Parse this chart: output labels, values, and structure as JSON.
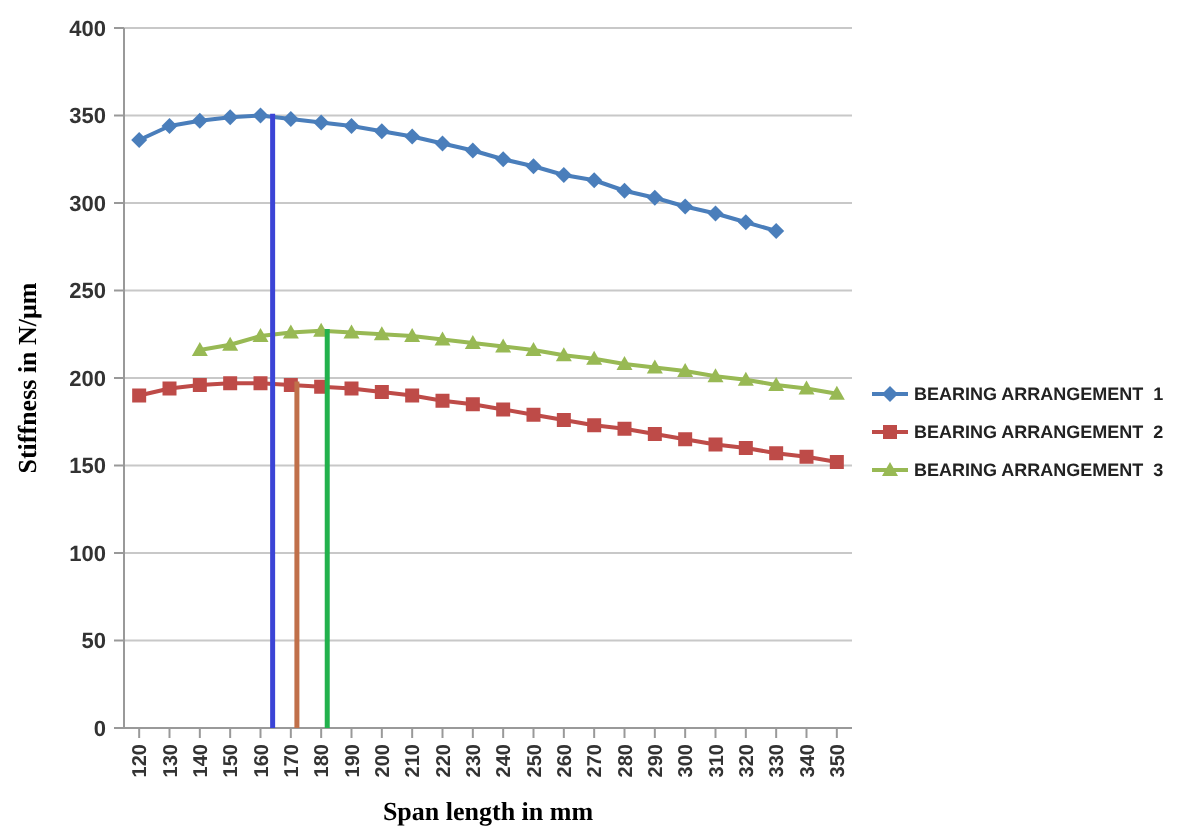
{
  "chart_data": {
    "type": "line",
    "xlabel": "Span length in mm",
    "ylabel": "Stiffness in N/μm",
    "xlim": [
      115,
      355
    ],
    "xticks": [
      120,
      130,
      140,
      150,
      160,
      170,
      180,
      190,
      200,
      210,
      220,
      230,
      240,
      250,
      260,
      270,
      280,
      290,
      300,
      310,
      320,
      330,
      340,
      350
    ],
    "ylim": [
      0,
      400
    ],
    "yticks": [
      0,
      50,
      100,
      150,
      200,
      250,
      300,
      350,
      400
    ],
    "grid": "y",
    "legend": "right",
    "series": [
      {
        "name": "BEARING ARRANGEMENT  1",
        "color": "#4a7ebb",
        "marker": "diamond",
        "x": [
          120,
          130,
          140,
          150,
          160,
          170,
          180,
          190,
          200,
          210,
          220,
          230,
          240,
          250,
          260,
          270,
          280,
          290,
          300,
          310,
          320,
          330
        ],
        "values": [
          336,
          344,
          347,
          349,
          350,
          348,
          346,
          344,
          341,
          338,
          334,
          330,
          325,
          321,
          316,
          313,
          307,
          303,
          298,
          294,
          289,
          284
        ]
      },
      {
        "name": "BEARING ARRANGEMENT  2",
        "color": "#be4b48",
        "marker": "square",
        "x": [
          120,
          130,
          140,
          150,
          160,
          170,
          180,
          190,
          200,
          210,
          220,
          230,
          240,
          250,
          260,
          270,
          280,
          290,
          300,
          310,
          320,
          330,
          340,
          350
        ],
        "values": [
          190,
          194,
          196,
          197,
          197,
          196,
          195,
          194,
          192,
          190,
          187,
          185,
          182,
          179,
          176,
          173,
          171,
          168,
          165,
          162,
          160,
          157,
          155,
          152
        ]
      },
      {
        "name": "BEARING ARRANGEMENT  3",
        "color": "#98b954",
        "marker": "triangle",
        "x": [
          140,
          150,
          160,
          170,
          180,
          190,
          200,
          210,
          220,
          230,
          240,
          250,
          260,
          270,
          280,
          290,
          300,
          310,
          320,
          330,
          340,
          350
        ],
        "values": [
          216,
          219,
          224,
          226,
          227,
          226,
          225,
          224,
          222,
          220,
          218,
          216,
          213,
          211,
          208,
          206,
          204,
          201,
          199,
          196,
          194,
          191
        ]
      },
      {
        "type": "line",
        "color": "#3b44d6",
        "marker": "none",
        "x": [
          164,
          164
        ],
        "values": [
          0,
          351
        ]
      },
      {
        "type": "line",
        "color": "#c0704a",
        "marker": "none",
        "x": [
          172,
          172
        ],
        "values": [
          0,
          198
        ]
      },
      {
        "type": "line",
        "color": "#22b14c",
        "marker": "none",
        "x": [
          182,
          182
        ],
        "values": [
          0,
          228
        ]
      }
    ]
  }
}
